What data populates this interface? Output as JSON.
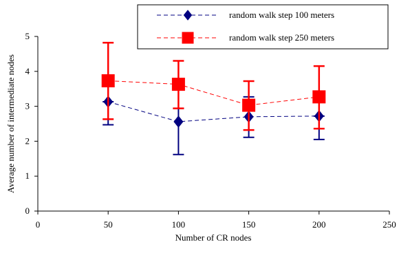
{
  "chart_data": {
    "type": "line",
    "xlabel": "Number of CR nodes",
    "ylabel": "Average number of intermediate nodes",
    "xlim": [
      0,
      250
    ],
    "ylim": [
      0,
      5
    ],
    "xticks": [
      0,
      50,
      100,
      150,
      200,
      250
    ],
    "yticks": [
      0,
      1,
      2,
      3,
      4,
      5
    ],
    "grid": false,
    "legend_position": "top-right",
    "x": [
      50,
      100,
      150,
      200
    ],
    "series": [
      {
        "name": "random walk step 100 meters",
        "values": [
          3.13,
          2.56,
          2.7,
          2.72
        ],
        "error_low": [
          2.47,
          1.62,
          2.11,
          2.05
        ],
        "error_high": [
          3.13,
          2.94,
          3.27,
          2.72
        ],
        "color": "#000080",
        "marker": "diamond",
        "line_style": "dashed"
      },
      {
        "name": "random walk step 250 meters",
        "values": [
          3.73,
          3.63,
          3.03,
          3.27
        ],
        "error_low": [
          2.63,
          2.94,
          2.32,
          2.36
        ],
        "error_high": [
          4.82,
          4.3,
          3.72,
          4.15
        ],
        "color": "#ff0000",
        "marker": "square",
        "line_style": "dashed"
      }
    ]
  }
}
